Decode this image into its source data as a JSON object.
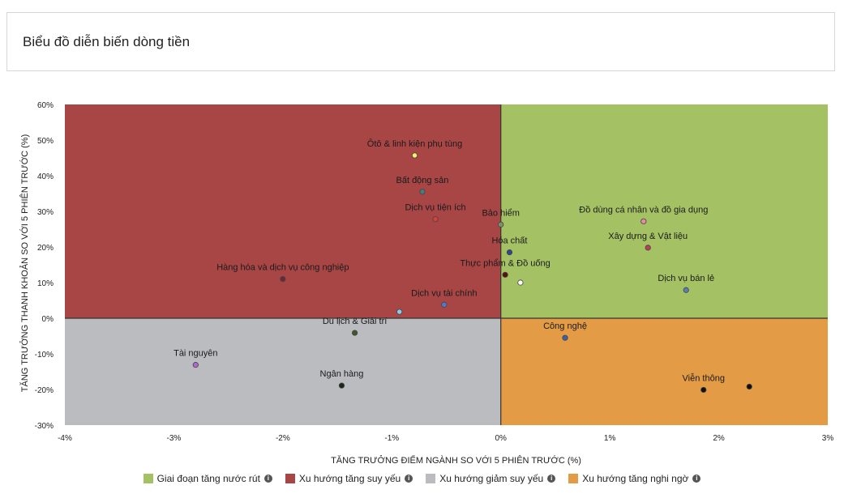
{
  "header": {
    "title": "Biểu đồ diễn biến dòng tiền"
  },
  "chart_data": {
    "type": "scatter",
    "title": "",
    "xlabel": "TĂNG TRƯỞNG ĐIỂM NGÀNH SO VỚI 5 PHIÊN TRƯỚC (%)",
    "ylabel": "TĂNG TRƯỞNG THANH KHOẢN SO VỚI 5 PHIÊN TRƯỚC (%)",
    "xlim": [
      -4,
      3
    ],
    "ylim": [
      -30,
      60
    ],
    "xticks": [
      -4,
      -3,
      -2,
      -1,
      0,
      1,
      2,
      3
    ],
    "yticks": [
      -30,
      -20,
      -10,
      0,
      10,
      20,
      30,
      40,
      50,
      60
    ],
    "xtick_labels": [
      "-4%",
      "-3%",
      "-2%",
      "-1%",
      "0%",
      "1%",
      "2%",
      "3%"
    ],
    "ytick_labels": [
      "-30%",
      "-20%",
      "-10%",
      "0%",
      "10%",
      "20%",
      "30%",
      "40%",
      "50%",
      "60%"
    ],
    "quadrant_colors": {
      "top_right": "#a4c264",
      "top_left": "#a84646",
      "bottom_left": "#bbbcbf",
      "bottom_right": "#e39b45"
    },
    "legend": [
      {
        "label": "Giai đoạn tăng nước rút",
        "color": "#a4c264"
      },
      {
        "label": "Xu hướng tăng suy yếu",
        "color": "#a84646"
      },
      {
        "label": "Xu hướng giảm suy yếu",
        "color": "#bbbcbf"
      },
      {
        "label": "Xu hướng tăng nghi ngờ",
        "color": "#e39b45"
      }
    ],
    "legend_position": "bottom",
    "points": [
      {
        "label": "Ôtô & linh kiện phụ tùng",
        "x": -0.79,
        "y": 45.7,
        "color": "#f3f06a"
      },
      {
        "label": "Bất động sản",
        "x": -0.72,
        "y": 35.5,
        "color": "#4a7a7c"
      },
      {
        "label": "Dịch vụ tiện ích",
        "x": -0.6,
        "y": 27.8,
        "color": "#d8413a"
      },
      {
        "label": "Bảo hiểm",
        "x": 0.0,
        "y": 26.3,
        "color": "#7f8f6a"
      },
      {
        "label": "Hóa chất",
        "x": 0.08,
        "y": 18.5,
        "color": "#30468c"
      },
      {
        "label": "Thực phẩm & Đồ uống",
        "x": 0.04,
        "y": 12.2,
        "color": "#5a1010"
      },
      {
        "label": "",
        "x": 0.18,
        "y": 10.0,
        "color": "#ffffff"
      },
      {
        "label": "Hàng hóa và dịch vụ công nghiệp",
        "x": -2.0,
        "y": 11.0,
        "color": "#6a2a3c"
      },
      {
        "label": "Dịch vụ tài chính",
        "x": -0.52,
        "y": 3.8,
        "color": "#5378c8"
      },
      {
        "label": "",
        "x": -0.93,
        "y": 1.8,
        "color": "#8ac9ee"
      },
      {
        "label": "Đồ dùng cá nhân và đồ gia dụng",
        "x": 1.31,
        "y": 27.2,
        "color": "#e88aa3"
      },
      {
        "label": "Xây dựng & Vật liệu",
        "x": 1.35,
        "y": 19.8,
        "color": "#c03a5a"
      },
      {
        "label": "Dịch vụ bán lẻ",
        "x": 1.7,
        "y": 7.9,
        "color": "#5a7cb8"
      },
      {
        "label": "Du lịch & Giải trí",
        "x": -1.34,
        "y": -4.1,
        "color": "#3e5a2a"
      },
      {
        "label": "Tài nguyên",
        "x": -2.8,
        "y": -13.1,
        "color": "#b068d0"
      },
      {
        "label": "Ngân hàng",
        "x": -1.46,
        "y": -18.9,
        "color": "#1a2a1a"
      },
      {
        "label": "Công nghệ",
        "x": 0.59,
        "y": -5.5,
        "color": "#3a62a8"
      },
      {
        "label": "Viễn thông",
        "x": 1.86,
        "y": -20.1,
        "color": "#101010"
      },
      {
        "label": "",
        "x": 2.28,
        "y": -19.2,
        "color": "#101010"
      }
    ]
  }
}
